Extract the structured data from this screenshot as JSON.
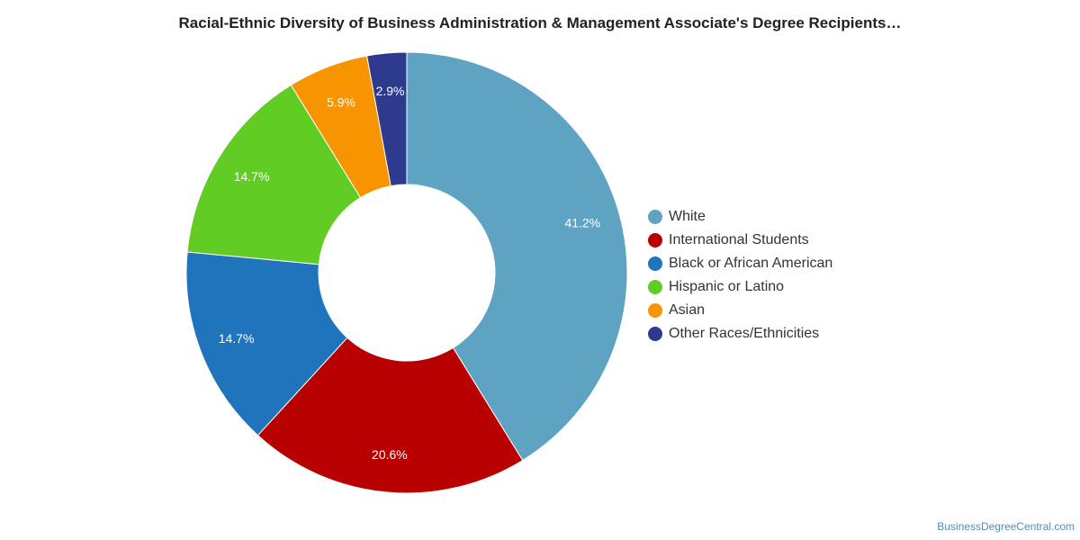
{
  "chart_data": {
    "type": "pie",
    "variant": "donut",
    "title": "Racial-Ethnic Diversity of Business Administration & Management Associate's Degree Recipients…",
    "categories": [
      "White",
      "International Students",
      "Black or African American",
      "Hispanic or Latino",
      "Asian",
      "Other Races/Ethnicities"
    ],
    "values": [
      41.2,
      20.6,
      14.7,
      14.7,
      5.9,
      2.9
    ],
    "value_labels": [
      "41.2%",
      "20.6%",
      "14.7%",
      "14.7%",
      "5.9%",
      "2.9%"
    ],
    "colors": [
      "#5ea3c1",
      "#b90000",
      "#1f74bb",
      "#61cc23",
      "#f79400",
      "#2e3a8e"
    ],
    "legend_position": "right",
    "start_angle": "top, clockwise"
  },
  "footer": {
    "credit": "BusinessDegreeCentral.com"
  }
}
